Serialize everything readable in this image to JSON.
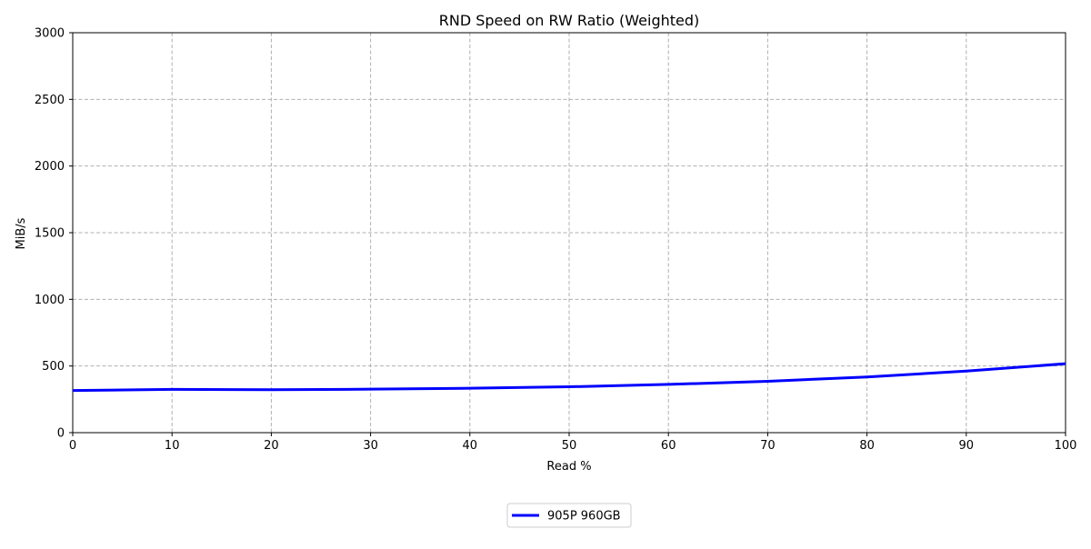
{
  "chart_data": {
    "type": "line",
    "title": "RND Speed on RW Ratio (Weighted)",
    "xlabel": "Read %",
    "ylabel": "MiB/s",
    "xlim": [
      0,
      100
    ],
    "ylim": [
      0,
      3000
    ],
    "xticks": [
      0,
      10,
      20,
      30,
      40,
      50,
      60,
      70,
      80,
      90,
      100
    ],
    "yticks": [
      0,
      500,
      1000,
      1500,
      2000,
      2500,
      3000
    ],
    "grid": true,
    "grid_style": "dashed",
    "legend_position": "bottom-center",
    "x": [
      0,
      10,
      20,
      30,
      40,
      50,
      60,
      70,
      80,
      90,
      100
    ],
    "series": [
      {
        "name": "905P 960GB",
        "color": "#0000ff",
        "values": [
          316,
          325,
          322,
          326,
          333,
          344,
          362,
          385,
          418,
          462,
          517
        ]
      }
    ]
  }
}
